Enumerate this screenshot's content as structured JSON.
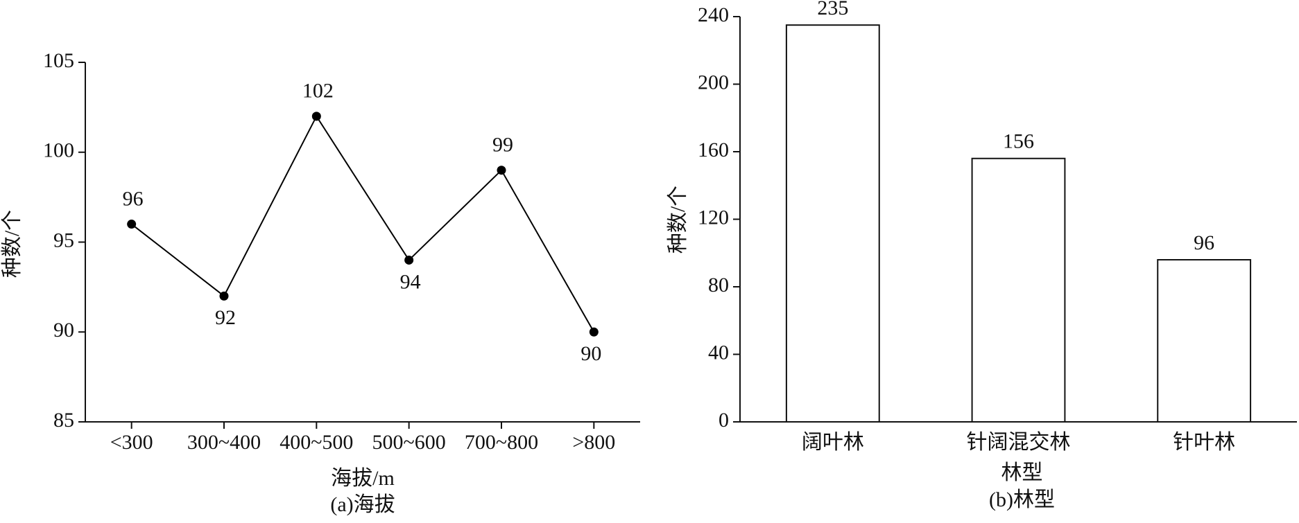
{
  "chart_data": [
    {
      "type": "line",
      "categories": [
        "<300",
        "300~400",
        "400~500",
        "500~600",
        "700~800",
        ">800"
      ],
      "values": [
        96,
        92,
        102,
        94,
        99,
        90
      ],
      "color": "#000000",
      "ylim": [
        85,
        105
      ],
      "yticks": [
        85,
        90,
        95,
        100,
        105
      ],
      "y_label": "种数/个",
      "x_label": "海拔/m",
      "caption": "(a)海拔"
    },
    {
      "type": "bar",
      "categories": [
        "阔叶林",
        "针阔混交林",
        "针叶林"
      ],
      "values": [
        235,
        156,
        96
      ],
      "color": "#ffffff",
      "ylim": [
        0,
        240
      ],
      "yticks": [
        0,
        40,
        80,
        120,
        160,
        200,
        240
      ],
      "y_label": "种数/个",
      "x_label": "林型",
      "caption": "(b)林型"
    }
  ]
}
